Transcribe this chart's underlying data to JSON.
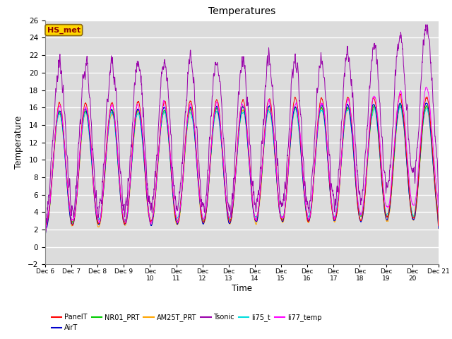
{
  "title": "Temperatures",
  "xlabel": "Time",
  "ylabel": "Temperature",
  "ylim": [
    -2,
    26
  ],
  "annotation_text": "HS_met",
  "annotation_color": "#8B0000",
  "annotation_bg": "#FFD700",
  "bg_color": "#DCDCDC",
  "series_colors": {
    "PanelT": "#FF0000",
    "AirT": "#0000CC",
    "NR01_PRT": "#00CC00",
    "AM25T_PRT": "#FFA500",
    "Tsonic": "#9900AA",
    "li75_t": "#00DDDD",
    "li77_temp": "#FF00FF"
  },
  "xtick_labels": [
    "Dec 6",
    "Dec 7",
    "Dec 8",
    "Dec 9",
    "Dec\n10",
    "Dec\n11",
    "Dec\n12",
    "Dec\n13",
    "Dec\n14",
    "Dec\n15",
    "Dec\n16",
    "Dec\n17",
    "Dec\n18",
    "Dec\n19",
    "Dec\n20",
    "Dec 21"
  ],
  "yticks": [
    -2,
    0,
    2,
    4,
    6,
    8,
    10,
    12,
    14,
    16,
    18,
    20,
    22,
    24,
    26
  ],
  "figsize": [
    6.4,
    4.8
  ],
  "dpi": 100
}
